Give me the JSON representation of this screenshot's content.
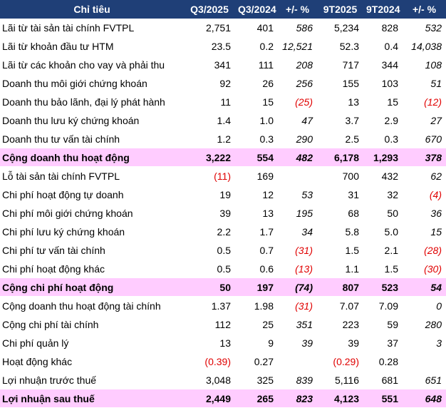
{
  "table": {
    "header": [
      "Chỉ tiêu",
      "Q3/2025",
      "Q3/2024",
      "+/- %",
      "9T2025",
      "9T2024",
      "+/- %"
    ],
    "rows": [
      {
        "cells": [
          "Lãi từ tài sản tài chính FVTPL",
          "2,751",
          "401",
          "586",
          "5,234",
          "828",
          "532"
        ]
      },
      {
        "cells": [
          "Lãi từ khoản đầu tư HTM",
          "23.5",
          "0.2",
          "12,521",
          "52.3",
          "0.4",
          "14,038"
        ]
      },
      {
        "cells": [
          "Lãi từ các khoản cho vay và phải thu",
          "341",
          "111",
          "208",
          "717",
          "344",
          "108"
        ]
      },
      {
        "cells": [
          "Doanh thu môi giới chứng khoán",
          "92",
          "26",
          "256",
          "155",
          "103",
          "51"
        ]
      },
      {
        "cells": [
          "Doanh thu bảo lãnh, đại lý phát hành",
          "11",
          "15",
          "(25)",
          "13",
          "15",
          "(12)"
        ]
      },
      {
        "cells": [
          "Doanh thu lưu ký chứng khoán",
          "1.4",
          "1.0",
          "47",
          "3.7",
          "2.9",
          "27"
        ]
      },
      {
        "cells": [
          "Doanh thu tư vấn tài chính",
          "1.2",
          "0.3",
          "290",
          "2.5",
          "0.3",
          "670"
        ]
      },
      {
        "cells": [
          "Cộng doanh thu hoạt động",
          "3,222",
          "554",
          "482",
          "6,178",
          "1,293",
          "378"
        ],
        "highlight": true
      },
      {
        "cells": [
          "Lỗ tài sản tài chính FVTPL",
          "(11)",
          "169",
          null,
          "700",
          "432",
          "62"
        ]
      },
      {
        "cells": [
          "Chi phí hoạt động tự doanh",
          "19",
          "12",
          "53",
          "31",
          "32",
          "(4)"
        ]
      },
      {
        "cells": [
          "Chi phí môi giới chứng khoán",
          "39",
          "13",
          "195",
          "68",
          "50",
          "36"
        ]
      },
      {
        "cells": [
          "Chi phí lưu ký chứng khoán",
          "2.2",
          "1.7",
          "34",
          "5.8",
          "5.0",
          "15"
        ]
      },
      {
        "cells": [
          "Chi phí tư vấn tài chính",
          "0.5",
          "0.7",
          "(31)",
          "1.5",
          "2.1",
          "(28)"
        ]
      },
      {
        "cells": [
          "Chi phí hoạt động khác",
          "0.5",
          "0.6",
          "(13)",
          "1.1",
          "1.5",
          "(30)"
        ]
      },
      {
        "cells": [
          "Cộng chi phí hoạt động",
          "50",
          "197",
          "(74)",
          "807",
          "523",
          "54"
        ],
        "highlight": true
      },
      {
        "cells": [
          "Cộng doanh thu hoạt động tài chính",
          "1.37",
          "1.98",
          "(31)",
          "7.07",
          "7.09",
          "0"
        ]
      },
      {
        "cells": [
          "Cộng chi phí tài chính",
          "112",
          "25",
          "351",
          "223",
          "59",
          "280"
        ]
      },
      {
        "cells": [
          "Chi phí quản lý",
          "13",
          "9",
          "39",
          "39",
          "37",
          "3"
        ]
      },
      {
        "cells": [
          "Hoạt động khác",
          "(0.39)",
          "0.27",
          null,
          "(0.29)",
          "0.28",
          null
        ]
      },
      {
        "cells": [
          "Lợi nhuận trước thuế",
          "3,048",
          "325",
          "839",
          "5,116",
          "681",
          "651"
        ]
      },
      {
        "cells": [
          "Lợi nhuận sau thuế",
          "2,449",
          "265",
          "823",
          "4,123",
          "551",
          "648"
        ],
        "highlight": true
      }
    ]
  }
}
